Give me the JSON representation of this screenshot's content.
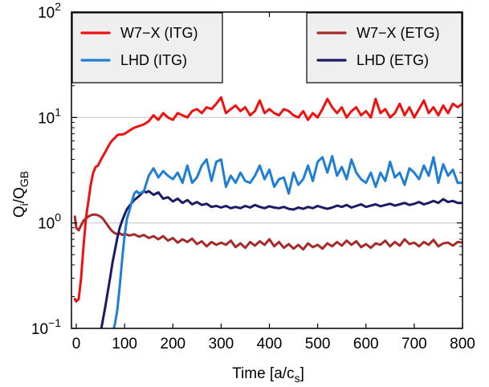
{
  "chart_data": {
    "type": "line",
    "xlabel": {
      "main": "Time [a/c",
      "sub": "s",
      "close": "]"
    },
    "ylabel": {
      "q": "Q",
      "q_sub": "i",
      "slash": "/",
      "q2": "Q",
      "q2_sub": "GB"
    },
    "xlim": [
      -10,
      800
    ],
    "ylim": [
      0.1,
      100
    ],
    "yscale": "log",
    "x_ticks": [
      0,
      100,
      200,
      300,
      400,
      500,
      600,
      700,
      800
    ],
    "x_tick_labels": [
      "0",
      "100",
      "200",
      "300",
      "400",
      "500",
      "600",
      "700",
      "800"
    ],
    "y_ticks": [
      {
        "value": 100,
        "base": "10",
        "exp": "2"
      },
      {
        "value": 10,
        "base": "10",
        "exp": "1"
      },
      {
        "value": 1,
        "base": "10",
        "exp": "0"
      },
      {
        "value": 0.1,
        "base": "10",
        "exp": "−1"
      }
    ],
    "gridlines_y": [
      1,
      10
    ],
    "legends": [
      {
        "placement": "top-left",
        "entries": [
          "W7-X (ITG)",
          "LHD (ITG)"
        ]
      },
      {
        "placement": "top-right",
        "entries": [
          "W7-X (ETG)",
          "LHD (ETG)"
        ]
      }
    ],
    "series": [
      {
        "name": "W7−X (ITG)",
        "color": "#ee1111",
        "x": [
          -3,
          0,
          5,
          10,
          15,
          20,
          25,
          30,
          35,
          40,
          45,
          50,
          55,
          60,
          65,
          70,
          75,
          80,
          85,
          90,
          95,
          100,
          110,
          120,
          130,
          140,
          150,
          160,
          170,
          180,
          190,
          200,
          210,
          220,
          230,
          240,
          250,
          260,
          270,
          280,
          290,
          300,
          310,
          320,
          330,
          340,
          350,
          360,
          370,
          380,
          390,
          400,
          410,
          420,
          430,
          440,
          450,
          460,
          470,
          480,
          490,
          500,
          510,
          520,
          530,
          540,
          550,
          560,
          570,
          580,
          590,
          600,
          610,
          620,
          630,
          640,
          650,
          660,
          670,
          680,
          690,
          700,
          710,
          720,
          730,
          740,
          750,
          760,
          770,
          780,
          790,
          800
        ],
        "y": [
          0.19,
          0.18,
          0.19,
          0.3,
          0.6,
          1.1,
          1.6,
          2.3,
          3.0,
          3.4,
          3.5,
          3.9,
          4.3,
          4.7,
          5.2,
          5.7,
          6.1,
          6.4,
          6.8,
          6.9,
          6.9,
          7.0,
          7.5,
          8.0,
          8.3,
          8.6,
          9.2,
          10.5,
          9.5,
          11.0,
          10.0,
          9.5,
          11.0,
          10.5,
          10.0,
          11.5,
          12.0,
          11.0,
          12.5,
          12.0,
          13.5,
          15.5,
          11.0,
          12.0,
          13.0,
          11.5,
          12.5,
          10.5,
          11.5,
          14.5,
          11.0,
          12.0,
          11.0,
          10.5,
          12.0,
          11.5,
          10.5,
          10.0,
          11.5,
          9.5,
          11.0,
          10.0,
          12.0,
          15.0,
          12.5,
          11.0,
          12.5,
          10.0,
          11.5,
          12.5,
          10.5,
          11.5,
          10.0,
          15.0,
          11.0,
          12.0,
          10.0,
          11.0,
          13.5,
          10.5,
          12.5,
          10.0,
          12.0,
          14.5,
          11.0,
          12.5,
          10.5,
          13.0,
          11.0,
          13.5,
          12.5,
          13.5
        ]
      },
      {
        "name": "LHD (ITG)",
        "color": "#1f7fd4",
        "x": [
          75,
          80,
          85,
          90,
          95,
          100,
          105,
          110,
          115,
          120,
          125,
          130,
          140,
          150,
          160,
          170,
          180,
          190,
          200,
          210,
          220,
          230,
          240,
          250,
          260,
          270,
          280,
          290,
          300,
          310,
          320,
          330,
          340,
          350,
          360,
          370,
          380,
          390,
          400,
          410,
          420,
          430,
          440,
          450,
          460,
          470,
          480,
          490,
          500,
          510,
          520,
          530,
          540,
          550,
          560,
          570,
          580,
          590,
          600,
          610,
          620,
          630,
          640,
          650,
          660,
          670,
          680,
          690,
          700,
          710,
          720,
          730,
          740,
          750,
          760,
          770,
          780,
          790,
          800
        ],
        "y": [
          0.09,
          0.11,
          0.15,
          0.25,
          0.45,
          0.75,
          1.1,
          1.3,
          1.6,
          1.9,
          2.0,
          1.9,
          2.0,
          2.8,
          3.3,
          2.7,
          3.1,
          2.8,
          2.6,
          3.0,
          2.4,
          3.5,
          2.4,
          2.7,
          3.5,
          4.0,
          2.5,
          3.8,
          4.0,
          2.2,
          2.8,
          2.4,
          3.0,
          2.5,
          2.4,
          2.8,
          3.5,
          2.6,
          3.2,
          2.2,
          2.6,
          2.7,
          1.9,
          3.0,
          2.3,
          2.6,
          3.5,
          2.5,
          3.8,
          4.2,
          3.0,
          4.3,
          2.8,
          3.4,
          2.6,
          4.0,
          3.0,
          2.6,
          2.4,
          3.0,
          2.2,
          3.0,
          2.5,
          3.8,
          2.7,
          3.0,
          2.3,
          3.3,
          3.0,
          2.6,
          3.5,
          2.8,
          4.2,
          2.4,
          3.6,
          2.8,
          3.2,
          2.4,
          2.4
        ]
      },
      {
        "name": "W7−X (ETG)",
        "color": "#a62a2a",
        "x": [
          -3,
          0,
          5,
          10,
          15,
          20,
          25,
          30,
          35,
          40,
          45,
          50,
          55,
          60,
          65,
          70,
          75,
          80,
          85,
          90,
          95,
          100,
          110,
          120,
          130,
          140,
          150,
          160,
          170,
          180,
          190,
          200,
          210,
          220,
          230,
          240,
          250,
          260,
          270,
          280,
          290,
          300,
          310,
          320,
          330,
          340,
          350,
          360,
          370,
          380,
          390,
          400,
          410,
          420,
          430,
          440,
          450,
          460,
          470,
          480,
          490,
          500,
          510,
          520,
          530,
          540,
          550,
          560,
          570,
          580,
          590,
          600,
          610,
          620,
          630,
          640,
          650,
          660,
          670,
          680,
          690,
          700,
          710,
          720,
          730,
          740,
          750,
          760,
          770,
          780,
          790,
          800
        ],
        "y": [
          1.15,
          0.9,
          0.85,
          0.95,
          1.05,
          1.1,
          1.15,
          1.18,
          1.2,
          1.2,
          1.18,
          1.15,
          1.1,
          1.02,
          0.95,
          0.88,
          0.83,
          0.8,
          0.78,
          0.8,
          0.77,
          0.79,
          0.76,
          0.78,
          0.74,
          0.77,
          0.72,
          0.75,
          0.7,
          0.75,
          0.68,
          0.72,
          0.65,
          0.7,
          0.66,
          0.71,
          0.63,
          0.67,
          0.6,
          0.66,
          0.62,
          0.65,
          0.62,
          0.68,
          0.59,
          0.64,
          0.58,
          0.66,
          0.61,
          0.67,
          0.62,
          0.7,
          0.6,
          0.66,
          0.58,
          0.63,
          0.57,
          0.62,
          0.56,
          0.64,
          0.59,
          0.62,
          0.57,
          0.64,
          0.6,
          0.66,
          0.61,
          0.68,
          0.62,
          0.67,
          0.59,
          0.63,
          0.58,
          0.64,
          0.62,
          0.68,
          0.6,
          0.66,
          0.61,
          0.7,
          0.63,
          0.65,
          0.6,
          0.66,
          0.62,
          0.69,
          0.6,
          0.64,
          0.65,
          0.61,
          0.66,
          0.65
        ]
      },
      {
        "name": "LHD (ETG)",
        "color": "#1a1a66",
        "x": [
          45,
          50,
          55,
          60,
          65,
          70,
          75,
          80,
          85,
          90,
          95,
          100,
          105,
          110,
          115,
          120,
          125,
          130,
          135,
          140,
          145,
          150,
          160,
          170,
          180,
          190,
          200,
          210,
          220,
          230,
          240,
          250,
          260,
          270,
          280,
          290,
          300,
          310,
          320,
          330,
          340,
          350,
          360,
          370,
          380,
          390,
          400,
          410,
          420,
          430,
          440,
          450,
          460,
          470,
          480,
          490,
          500,
          510,
          520,
          530,
          540,
          550,
          560,
          570,
          580,
          590,
          600,
          610,
          620,
          630,
          640,
          650,
          660,
          670,
          680,
          690,
          700,
          710,
          720,
          730,
          740,
          750,
          760,
          770,
          780,
          790,
          800
        ],
        "y": [
          0.07,
          0.09,
          0.12,
          0.16,
          0.22,
          0.3,
          0.42,
          0.55,
          0.72,
          0.9,
          1.05,
          1.2,
          1.35,
          1.45,
          1.55,
          1.65,
          1.72,
          1.8,
          1.9,
          2.0,
          1.95,
          2.0,
          1.85,
          1.95,
          1.7,
          1.75,
          1.6,
          1.7,
          1.55,
          1.65,
          1.5,
          1.58,
          1.48,
          1.52,
          1.42,
          1.45,
          1.4,
          1.45,
          1.38,
          1.42,
          1.38,
          1.45,
          1.4,
          1.48,
          1.42,
          1.38,
          1.44,
          1.4,
          1.38,
          1.42,
          1.36,
          1.34,
          1.4,
          1.36,
          1.42,
          1.38,
          1.45,
          1.4,
          1.36,
          1.4,
          1.46,
          1.42,
          1.48,
          1.4,
          1.45,
          1.5,
          1.42,
          1.46,
          1.5,
          1.44,
          1.48,
          1.52,
          1.46,
          1.5,
          1.55,
          1.48,
          1.52,
          1.58,
          1.5,
          1.55,
          1.62,
          1.55,
          1.68,
          1.58,
          1.62,
          1.55,
          1.55
        ]
      }
    ]
  }
}
